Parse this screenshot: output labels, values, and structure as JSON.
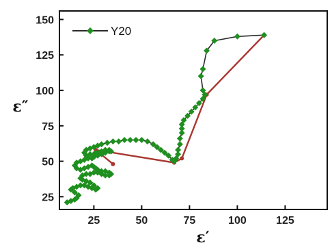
{
  "chart_data": {
    "type": "scatter",
    "xlabel": "ε′",
    "ylabel": "ε″",
    "xlim": [
      7,
      147
    ],
    "ylim": [
      16,
      156
    ],
    "xticks": [
      25,
      50,
      75,
      100,
      125
    ],
    "yticks": [
      25,
      50,
      75,
      100,
      125,
      150
    ],
    "grid": false,
    "legend": {
      "position": "top-left",
      "entries": [
        "Y20"
      ]
    },
    "colors": {
      "series": "#2a2a2a",
      "marker": "#1f8f1f",
      "fit": "#a9362f"
    },
    "series": [
      {
        "name": "Y20",
        "x": [
          11,
          13,
          15,
          16,
          17,
          15,
          13,
          14,
          16,
          18,
          20,
          22,
          24,
          26,
          27,
          25,
          23,
          21,
          19,
          18,
          19,
          21,
          23,
          25,
          27,
          29,
          31,
          33,
          34,
          33,
          31,
          29,
          27,
          26,
          25,
          24,
          22,
          20,
          18,
          16,
          15,
          16,
          18,
          20,
          22,
          24,
          25,
          27,
          29,
          31,
          33,
          34,
          33,
          31,
          29,
          27,
          26,
          25,
          23,
          21,
          20,
          21,
          23,
          25,
          27,
          29,
          32,
          35,
          38,
          41,
          44,
          47,
          50,
          53,
          56,
          58,
          60,
          62,
          64,
          66,
          67,
          68,
          69,
          69,
          70,
          70,
          71,
          71,
          71,
          72,
          74,
          76,
          78,
          80,
          82,
          83,
          82,
          81,
          82,
          84,
          88,
          100,
          114
        ],
        "y": [
          21,
          22,
          23,
          24,
          26,
          28,
          30,
          31,
          32,
          33,
          33,
          32,
          31,
          30,
          31,
          33,
          35,
          36,
          37,
          38,
          40,
          41,
          41,
          42,
          42,
          41,
          40,
          40,
          41,
          42,
          43,
          43,
          44,
          45,
          46,
          47,
          46,
          45,
          44,
          45,
          47,
          49,
          50,
          51,
          52,
          52,
          53,
          54,
          55,
          56,
          57,
          57,
          58,
          58,
          57,
          56,
          56,
          55,
          55,
          54,
          56,
          58,
          59,
          60,
          61,
          62,
          63,
          64,
          64,
          65,
          65,
          65,
          65,
          64,
          62,
          60,
          58,
          56,
          54,
          51,
          50,
          52,
          55,
          58,
          62,
          66,
          70,
          73,
          76,
          79,
          82,
          85,
          88,
          91,
          94,
          97,
          100,
          110,
          115,
          128,
          135,
          138,
          139
        ],
        "color": "#1f8f1f"
      }
    ],
    "fit_line": {
      "x": [
        35,
        26,
        67,
        71,
        84,
        114
      ],
      "y": [
        48,
        58,
        49,
        52,
        97,
        139
      ],
      "color": "#a9362f"
    }
  }
}
